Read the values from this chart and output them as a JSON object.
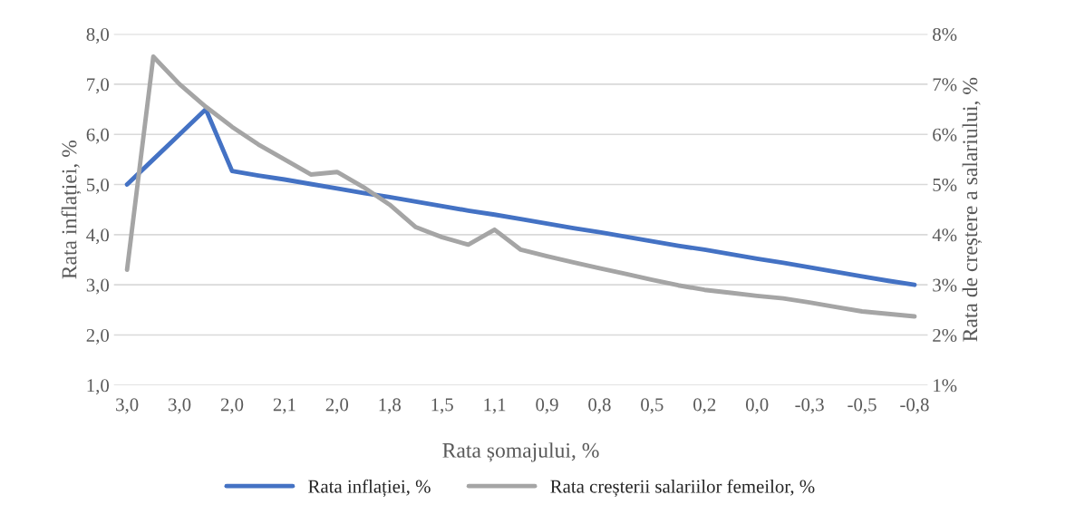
{
  "chart_data": {
    "type": "line",
    "xlabel": "Rata șomajului, %",
    "ylabel": "Rata inflației, %",
    "y2label": "Rata de creștere a salariului, %",
    "categories": [
      "3,0",
      null,
      "3,0",
      null,
      "2,0",
      null,
      "2,1",
      null,
      "2,0",
      null,
      "1,8",
      null,
      "1,5",
      null,
      "1,1",
      null,
      "0,9",
      null,
      "0,8",
      null,
      "0,5",
      null,
      "0,2",
      null,
      "0,0",
      null,
      "-0,3",
      null,
      "-0,5",
      null,
      "-0,8"
    ],
    "series": [
      {
        "name": "Rata inflației, %",
        "color": "#4472c4",
        "values": [
          5.0,
          5.5,
          6.0,
          6.5,
          5.27,
          5.18,
          5.1,
          5.01,
          4.92,
          4.83,
          4.75,
          4.66,
          4.57,
          4.48,
          4.4,
          4.31,
          4.22,
          4.13,
          4.05,
          3.96,
          3.87,
          3.78,
          3.7,
          3.61,
          3.52,
          3.44,
          3.35,
          3.26,
          3.17,
          3.08,
          3.0
        ]
      },
      {
        "name": "Rata creșterii salariilor femeilor, %",
        "color": "#a5a5a5",
        "axis": "y2",
        "values": [
          3.3,
          7.55,
          7.0,
          6.55,
          6.15,
          5.8,
          5.5,
          5.2,
          5.25,
          4.95,
          4.6,
          4.15,
          3.95,
          3.8,
          4.1,
          3.7,
          3.57,
          3.45,
          3.33,
          3.22,
          3.1,
          2.99,
          2.9,
          2.84,
          2.78,
          2.73,
          2.65,
          2.56,
          2.47,
          2.42,
          2.37
        ]
      }
    ],
    "ylim": [
      1,
      8
    ],
    "yticks": [
      {
        "value": 1,
        "label": "1,0"
      },
      {
        "value": 2,
        "label": "2,0"
      },
      {
        "value": 3,
        "label": "3,0"
      },
      {
        "value": 4,
        "label": "4,0"
      },
      {
        "value": 5,
        "label": "5,0"
      },
      {
        "value": 6,
        "label": "6,0"
      },
      {
        "value": 7,
        "label": "7,0"
      },
      {
        "value": 8,
        "label": "8,0"
      }
    ],
    "y2lim": [
      1,
      8
    ],
    "y2ticks": [
      {
        "value": 1,
        "label": "1%"
      },
      {
        "value": 2,
        "label": "2%"
      },
      {
        "value": 3,
        "label": "3%"
      },
      {
        "value": 4,
        "label": "4%"
      },
      {
        "value": 5,
        "label": "5%"
      },
      {
        "value": 6,
        "label": "6%"
      },
      {
        "value": 7,
        "label": "7%"
      },
      {
        "value": 8,
        "label": "8%"
      }
    ],
    "grid": "y",
    "legend": "bottom",
    "marker": "none",
    "line_style": "solid"
  }
}
